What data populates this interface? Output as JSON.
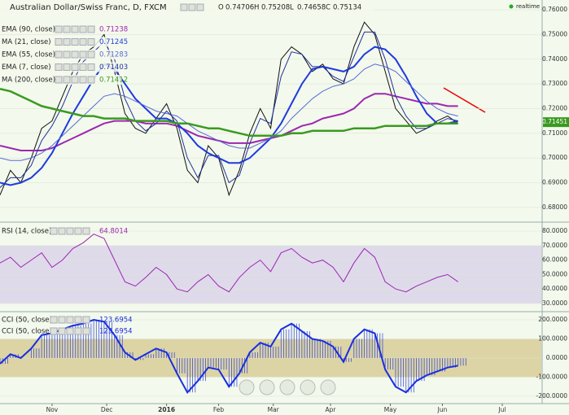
{
  "chart_data": [
    {
      "type": "line",
      "title": "Australian Dollar/Swiss Franc, D, FXCM",
      "status": "realtime",
      "ohlc": [
        {
          "label": "O",
          "value": 0.74706
        },
        {
          "label": "H",
          "value": 0.75208
        },
        {
          "label": "L",
          "value": 0.74658
        },
        {
          "label": "C",
          "value": 0.75134
        }
      ],
      "x": [
        0,
        4,
        8,
        12,
        16,
        20,
        24,
        28,
        32,
        36,
        40,
        44,
        48,
        52,
        56,
        60,
        64,
        68,
        72,
        76,
        80,
        84,
        88,
        92,
        96,
        100,
        104,
        108,
        112,
        116,
        120,
        124,
        128,
        132,
        136,
        140,
        144,
        148,
        152,
        156,
        160,
        164,
        168,
        172,
        176
      ],
      "xlim": [
        0,
        208
      ],
      "ylim": [
        0.675,
        0.762
      ],
      "yticks": [
        {
          "value": 0.68,
          "label": "0.68000"
        },
        {
          "value": 0.69,
          "label": "0.69000"
        },
        {
          "value": 0.7,
          "label": "0.70000"
        },
        {
          "value": 0.71,
          "label": "0.71000"
        },
        {
          "value": 0.72,
          "label": "0.72000"
        },
        {
          "value": 0.73,
          "label": "0.73000"
        },
        {
          "value": 0.74,
          "label": "0.74000"
        },
        {
          "value": 0.75,
          "label": "0.75000"
        },
        {
          "value": 0.76,
          "label": "0.76000"
        }
      ],
      "last": 0.71451,
      "price_color": "#111111",
      "price": [
        0.685,
        0.695,
        0.69,
        0.7,
        0.712,
        0.715,
        0.725,
        0.735,
        0.742,
        0.745,
        0.75,
        0.735,
        0.718,
        0.712,
        0.71,
        0.716,
        0.722,
        0.712,
        0.695,
        0.69,
        0.705,
        0.7,
        0.685,
        0.695,
        0.71,
        0.72,
        0.712,
        0.74,
        0.745,
        0.742,
        0.735,
        0.738,
        0.732,
        0.73,
        0.745,
        0.755,
        0.75,
        0.735,
        0.72,
        0.715,
        0.71,
        0.712,
        0.715,
        0.717,
        0.714
      ],
      "series": [
        {
          "name": "EMA (90, close)",
          "value": 0.71238,
          "color": "#9c27b0",
          "width": 2,
          "values": [
            0.705,
            0.704,
            0.703,
            0.703,
            0.703,
            0.704,
            0.706,
            0.708,
            0.71,
            0.712,
            0.714,
            0.715,
            0.715,
            0.715,
            0.714,
            0.714,
            0.714,
            0.713,
            0.711,
            0.709,
            0.708,
            0.707,
            0.706,
            0.706,
            0.706,
            0.707,
            0.708,
            0.709,
            0.711,
            0.713,
            0.714,
            0.716,
            0.717,
            0.718,
            0.72,
            0.724,
            0.726,
            0.726,
            0.725,
            0.724,
            0.723,
            0.722,
            0.722,
            0.721,
            0.721
          ]
        },
        {
          "name": "MA (21, close)",
          "value": 0.71245,
          "color": "#1e3ae0",
          "width": 2,
          "values": [
            0.69,
            0.689,
            0.69,
            0.692,
            0.696,
            0.702,
            0.71,
            0.718,
            0.725,
            0.732,
            0.738,
            0.736,
            0.73,
            0.724,
            0.72,
            0.716,
            0.716,
            0.714,
            0.71,
            0.705,
            0.702,
            0.7,
            0.698,
            0.698,
            0.7,
            0.704,
            0.708,
            0.714,
            0.722,
            0.73,
            0.736,
            0.737,
            0.736,
            0.735,
            0.737,
            0.742,
            0.745,
            0.744,
            0.74,
            0.733,
            0.725,
            0.718,
            0.714,
            0.714,
            0.715
          ]
        },
        {
          "name": "EMA (55, close)",
          "value": 0.71283,
          "color": "#5a6ad8",
          "width": 1,
          "values": [
            0.7,
            0.699,
            0.699,
            0.7,
            0.702,
            0.705,
            0.709,
            0.713,
            0.717,
            0.721,
            0.725,
            0.726,
            0.725,
            0.723,
            0.721,
            0.719,
            0.718,
            0.717,
            0.714,
            0.711,
            0.709,
            0.707,
            0.705,
            0.704,
            0.704,
            0.706,
            0.708,
            0.711,
            0.716,
            0.72,
            0.724,
            0.727,
            0.729,
            0.73,
            0.732,
            0.736,
            0.738,
            0.737,
            0.735,
            0.731,
            0.727,
            0.723,
            0.72,
            0.718,
            0.717
          ]
        },
        {
          "name": "EMA (7, close)",
          "value": 0.71403,
          "color": "#2030a0",
          "width": 1,
          "values": [
            0.688,
            0.692,
            0.692,
            0.697,
            0.707,
            0.713,
            0.721,
            0.731,
            0.739,
            0.743,
            0.747,
            0.74,
            0.724,
            0.715,
            0.711,
            0.714,
            0.719,
            0.715,
            0.7,
            0.692,
            0.701,
            0.701,
            0.69,
            0.693,
            0.706,
            0.716,
            0.714,
            0.733,
            0.743,
            0.742,
            0.737,
            0.737,
            0.733,
            0.731,
            0.741,
            0.751,
            0.751,
            0.74,
            0.725,
            0.717,
            0.712,
            0.712,
            0.714,
            0.716,
            0.715
          ]
        },
        {
          "name": "MA (200, close)",
          "value": 0.71412,
          "color": "#3a9a20",
          "width": 2.5,
          "values": [
            0.728,
            0.727,
            0.725,
            0.723,
            0.721,
            0.72,
            0.719,
            0.718,
            0.717,
            0.717,
            0.716,
            0.716,
            0.716,
            0.715,
            0.715,
            0.715,
            0.715,
            0.714,
            0.714,
            0.713,
            0.712,
            0.712,
            0.711,
            0.71,
            0.709,
            0.709,
            0.709,
            0.709,
            0.71,
            0.71,
            0.711,
            0.711,
            0.711,
            0.711,
            0.712,
            0.712,
            0.712,
            0.713,
            0.713,
            0.713,
            0.713,
            0.713,
            0.714,
            0.714,
            0.714
          ]
        }
      ]
    },
    {
      "type": "line",
      "title": "RSI (14, close)",
      "value": 64.8014,
      "color": "#9c27b0",
      "ylim": [
        26,
        84
      ],
      "band": [
        30,
        70
      ],
      "yticks": [
        {
          "value": 30,
          "label": "30.0000"
        },
        {
          "value": 40,
          "label": "40.0000"
        },
        {
          "value": 50,
          "label": "50.0000"
        },
        {
          "value": 60,
          "label": "60.0000"
        },
        {
          "value": 70,
          "label": "70.0000"
        },
        {
          "value": 80,
          "label": "80.0000"
        }
      ],
      "values": [
        58,
        62,
        55,
        60,
        65,
        55,
        60,
        68,
        72,
        78,
        75,
        60,
        45,
        42,
        48,
        55,
        50,
        40,
        38,
        45,
        50,
        42,
        38,
        48,
        55,
        60,
        52,
        65,
        68,
        62,
        58,
        60,
        55,
        45,
        58,
        68,
        62,
        45,
        40,
        38,
        42,
        45,
        48,
        50,
        45
      ]
    },
    {
      "type": "histogram-line",
      "titles": [
        "CCI (50, close)",
        "CCI (50, close)"
      ],
      "value": 123.6954,
      "color": "#1a2ee0",
      "ylim": [
        -230,
        230
      ],
      "band": [
        -100,
        100
      ],
      "yticks": [
        {
          "value": -200,
          "label": "-200.0000"
        },
        {
          "value": -100,
          "label": "-100.0000"
        },
        {
          "value": 0,
          "label": "0.0000"
        },
        {
          "value": 100,
          "label": "100.0000"
        },
        {
          "value": 200,
          "label": "200.0000"
        }
      ],
      "xticks": [
        {
          "value": 20,
          "label": "Nov"
        },
        {
          "value": 41,
          "label": "Dec"
        },
        {
          "value": 64,
          "label": "2016"
        },
        {
          "value": 84,
          "label": "Feb"
        },
        {
          "value": 105,
          "label": "Mar"
        },
        {
          "value": 127,
          "label": "Apr"
        },
        {
          "value": 150,
          "label": "May"
        },
        {
          "value": 170,
          "label": "Jun"
        },
        {
          "value": 193,
          "label": "Jul"
        }
      ],
      "values": [
        -30,
        20,
        0,
        50,
        120,
        130,
        150,
        170,
        180,
        200,
        190,
        120,
        30,
        -10,
        20,
        50,
        30,
        -80,
        -180,
        -120,
        -50,
        -60,
        -150,
        -80,
        30,
        80,
        60,
        150,
        180,
        140,
        100,
        90,
        60,
        -20,
        100,
        150,
        130,
        -60,
        -150,
        -180,
        -120,
        -90,
        -70,
        -50,
        -40
      ]
    }
  ]
}
